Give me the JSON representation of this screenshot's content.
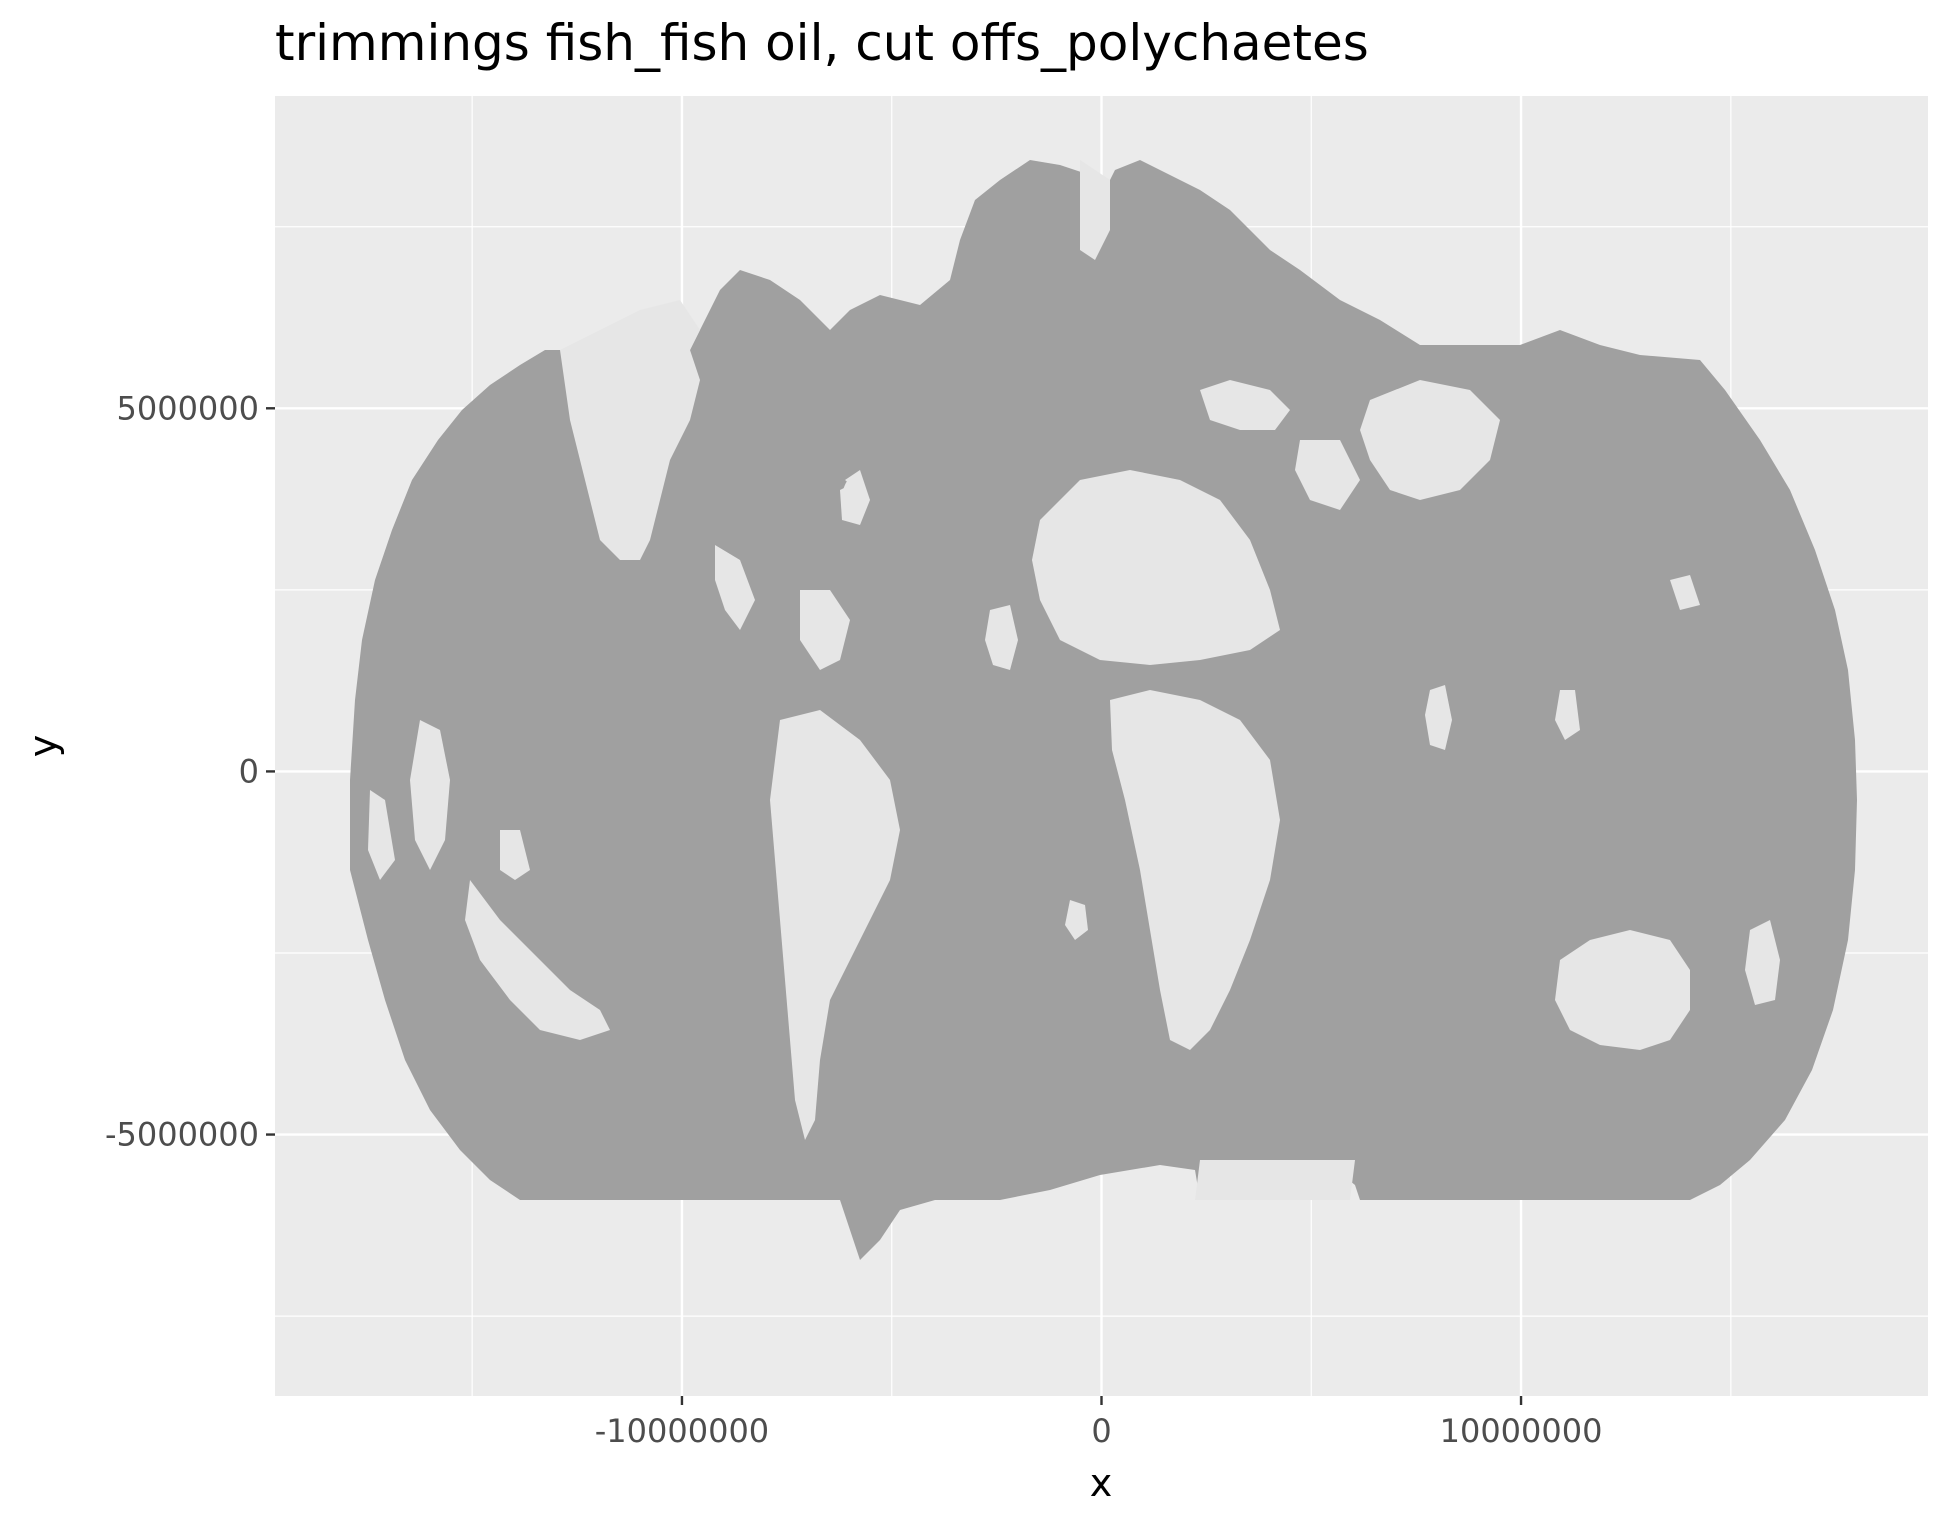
{
  "title": "trimmings fish_fish oil, cut offs_polychaetes",
  "axes": {
    "x_label": "x",
    "y_label": "y",
    "x_ticks": [
      {
        "value": -10000000,
        "label": "-10000000"
      },
      {
        "value": 0,
        "label": "0"
      },
      {
        "value": 10000000,
        "label": "10000000"
      }
    ],
    "y_ticks": [
      {
        "value": 5000000,
        "label": "5000000"
      },
      {
        "value": 0,
        "label": "0"
      },
      {
        "value": -5000000,
        "label": "-5000000"
      }
    ],
    "x_range": [
      -19700000,
      19700000
    ],
    "y_range": [
      -8600000,
      9300000
    ]
  },
  "colors": {
    "panel": "#ebebeb",
    "grid": "#ffffff",
    "fill": "#a0a0a0",
    "land": "#e6e6e6"
  }
}
